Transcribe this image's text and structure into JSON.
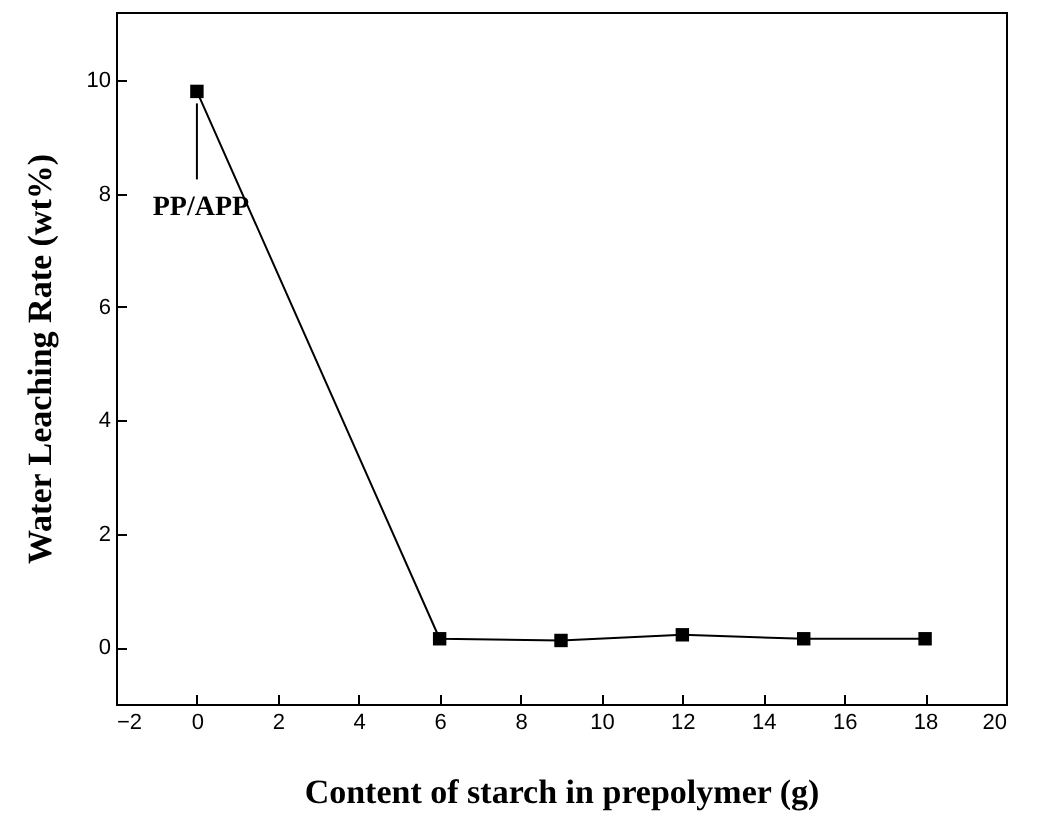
{
  "chart_data": {
    "type": "line",
    "xlabel": "Content of starch in prepolymer (g)",
    "ylabel": "Water Leaching Rate (wt%)",
    "x": [
      0,
      6,
      9,
      12,
      15,
      18
    ],
    "values": [
      9.8,
      0.15,
      0.12,
      0.22,
      0.15,
      0.15
    ],
    "color": "#000000",
    "marker": "square",
    "line_style": "solid",
    "grid": false,
    "xlim": [
      -2,
      20
    ],
    "xticks": [
      -2,
      0,
      2,
      4,
      6,
      8,
      10,
      12,
      14,
      16,
      18,
      20
    ],
    "ylim": [
      -1,
      11.2
    ],
    "yticks": [
      0,
      2,
      4,
      6,
      8,
      10
    ],
    "annotations": [
      {
        "text": "PP/APP",
        "x": 0,
        "y": 9.8
      }
    ]
  }
}
